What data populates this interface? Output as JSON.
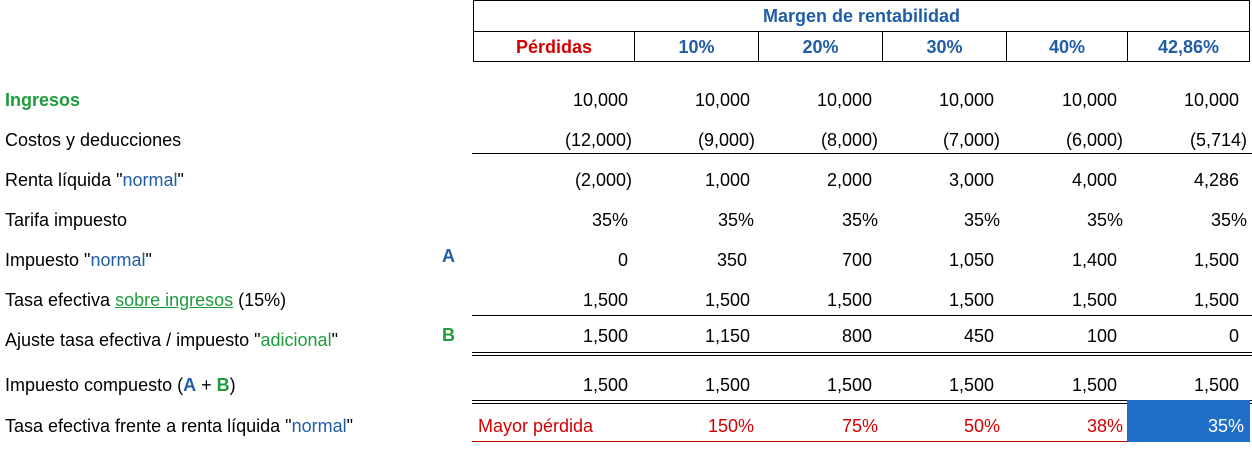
{
  "header": {
    "title": "Margen de rentabilidad",
    "columns": [
      "Pérdidas",
      "10%",
      "20%",
      "30%",
      "40%",
      "42,86%"
    ]
  },
  "rows": [
    {
      "label": "Ingresos",
      "values": [
        "10,000",
        "10,000",
        "10,000",
        "10,000",
        "10,000",
        "10,000"
      ]
    },
    {
      "label": "Costos y deducciones",
      "values": [
        "(12,000)",
        "(9,000)",
        "(8,000)",
        "(7,000)",
        "(6,000)",
        "(5,714)"
      ]
    },
    {
      "label_pre": "Renta líquida \"",
      "label_hl": "normal",
      "label_post": "\"",
      "values": [
        "(2,000)",
        "1,000",
        "2,000",
        "3,000",
        "4,000",
        "4,286"
      ]
    },
    {
      "label": "Tarifa impuesto",
      "values": [
        "35%",
        "35%",
        "35%",
        "35%",
        "35%",
        "35%"
      ]
    },
    {
      "label_pre": "Impuesto \"",
      "label_hl": "normal",
      "label_post": "\"",
      "marker": "A",
      "values": [
        "0",
        "350",
        "700",
        "1,050",
        "1,400",
        "1,500"
      ]
    },
    {
      "label_pre": "Tasa efectiva ",
      "label_hl": "sobre ingresos",
      "label_post": " (15%)",
      "values": [
        "1,500",
        "1,500",
        "1,500",
        "1,500",
        "1,500",
        "1,500"
      ]
    },
    {
      "label_pre": "Ajuste tasa efectiva / impuesto \"",
      "label_hl": "adicional",
      "label_post": "\"",
      "marker": "B",
      "values": [
        "1,500",
        "1,150",
        "800",
        "450",
        "100",
        "0"
      ]
    },
    {
      "label_pre": "Impuesto compuesto (",
      "label_a": "A",
      "label_plus": " + ",
      "label_b": "B",
      "label_post": ")",
      "values": [
        "1,500",
        "1,500",
        "1,500",
        "1,500",
        "1,500",
        "1,500"
      ]
    },
    {
      "label_pre": "Tasa efectiva frente a renta líquida \"",
      "label_hl": "normal",
      "label_post": "\"",
      "values": [
        "Mayor pérdida",
        "150%",
        "75%",
        "50%",
        "38%",
        "35%"
      ]
    }
  ]
}
